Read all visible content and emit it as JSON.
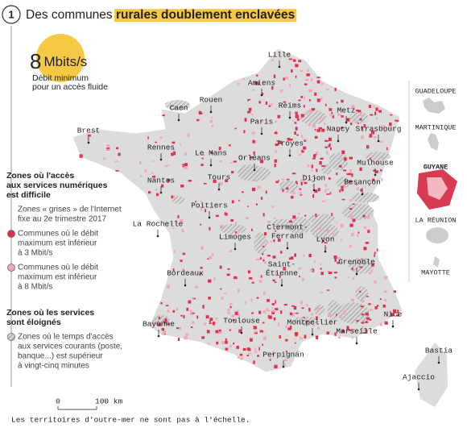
{
  "header": {
    "number": "1",
    "title_plain": "Des communes",
    "title_highlight": "rurales doublement enclavées"
  },
  "callout": {
    "value": "8",
    "unit": "Mbits/s",
    "caption": [
      "Débit minimum",
      "pour un accès fluide"
    ]
  },
  "legend": {
    "sections": [
      {
        "title": [
          "Zones où l'accès",
          "aux services numériques",
          "est difficile"
        ],
        "items": [
          {
            "lines": [
              "Zones « grises » de l'Internet",
              "fixe au 2e trimestre 2017"
            ]
          },
          {
            "lines": [
              "Communes où le débit",
              "maximum est inférieur",
              "à 3 Mbit/s"
            ]
          },
          {
            "lines": [
              "Communes où le débit",
              "maximum est inférieur",
              "à 8 Mbit/s"
            ]
          }
        ]
      },
      {
        "title": [
          "Zones où les services",
          "sont éloignés"
        ],
        "items": [
          {
            "lines": [
              "Zones où le temps d'accès",
              "aux services courants (poste,",
              "banque...) est supérieur",
              "à vingt-cinq minutes"
            ]
          }
        ]
      }
    ]
  },
  "cities": [
    [
      "Lille"
    ],
    [
      "Amiens"
    ],
    [
      "Rouen"
    ],
    [
      "Caen"
    ],
    [
      "Reims"
    ],
    [
      "Metz"
    ],
    [
      "Paris"
    ],
    [
      "Nancy"
    ],
    [
      "Strasbourg"
    ],
    [
      "Brest"
    ],
    [
      "Troyes"
    ],
    [
      "Rennes"
    ],
    [
      "Le Mans"
    ],
    [
      "Orléans"
    ],
    [
      "Mulhouse"
    ],
    [
      "Nantes"
    ],
    [
      "Tours"
    ],
    [
      "Dijon"
    ],
    [
      "Besançon"
    ],
    [
      "Poitiers"
    ],
    [
      "La Rochelle"
    ],
    [
      "Clermont-",
      "Ferrand"
    ],
    [
      "Limoges"
    ],
    [
      "Lyon"
    ],
    [
      "Bordeaux"
    ],
    [
      "Saint-",
      "Étienne"
    ],
    [
      "Grenoble"
    ],
    [
      "Nice"
    ],
    [
      "Bayonne"
    ],
    [
      "Toulouse"
    ],
    [
      "Montpellier"
    ],
    [
      "Marseille"
    ],
    [
      "Perpignan"
    ],
    [
      "Bastia"
    ],
    [
      "Ajaccio"
    ]
  ],
  "overseas": [
    "GUADELOUPE",
    "MARTINIQUE",
    "GUYANE",
    "LA RÉUNION",
    "MAYOTTE"
  ],
  "scale": {
    "start": "0",
    "end": "100 km"
  },
  "footnote": "Les territoires d'outre-mer ne sont pas à l'échelle."
}
